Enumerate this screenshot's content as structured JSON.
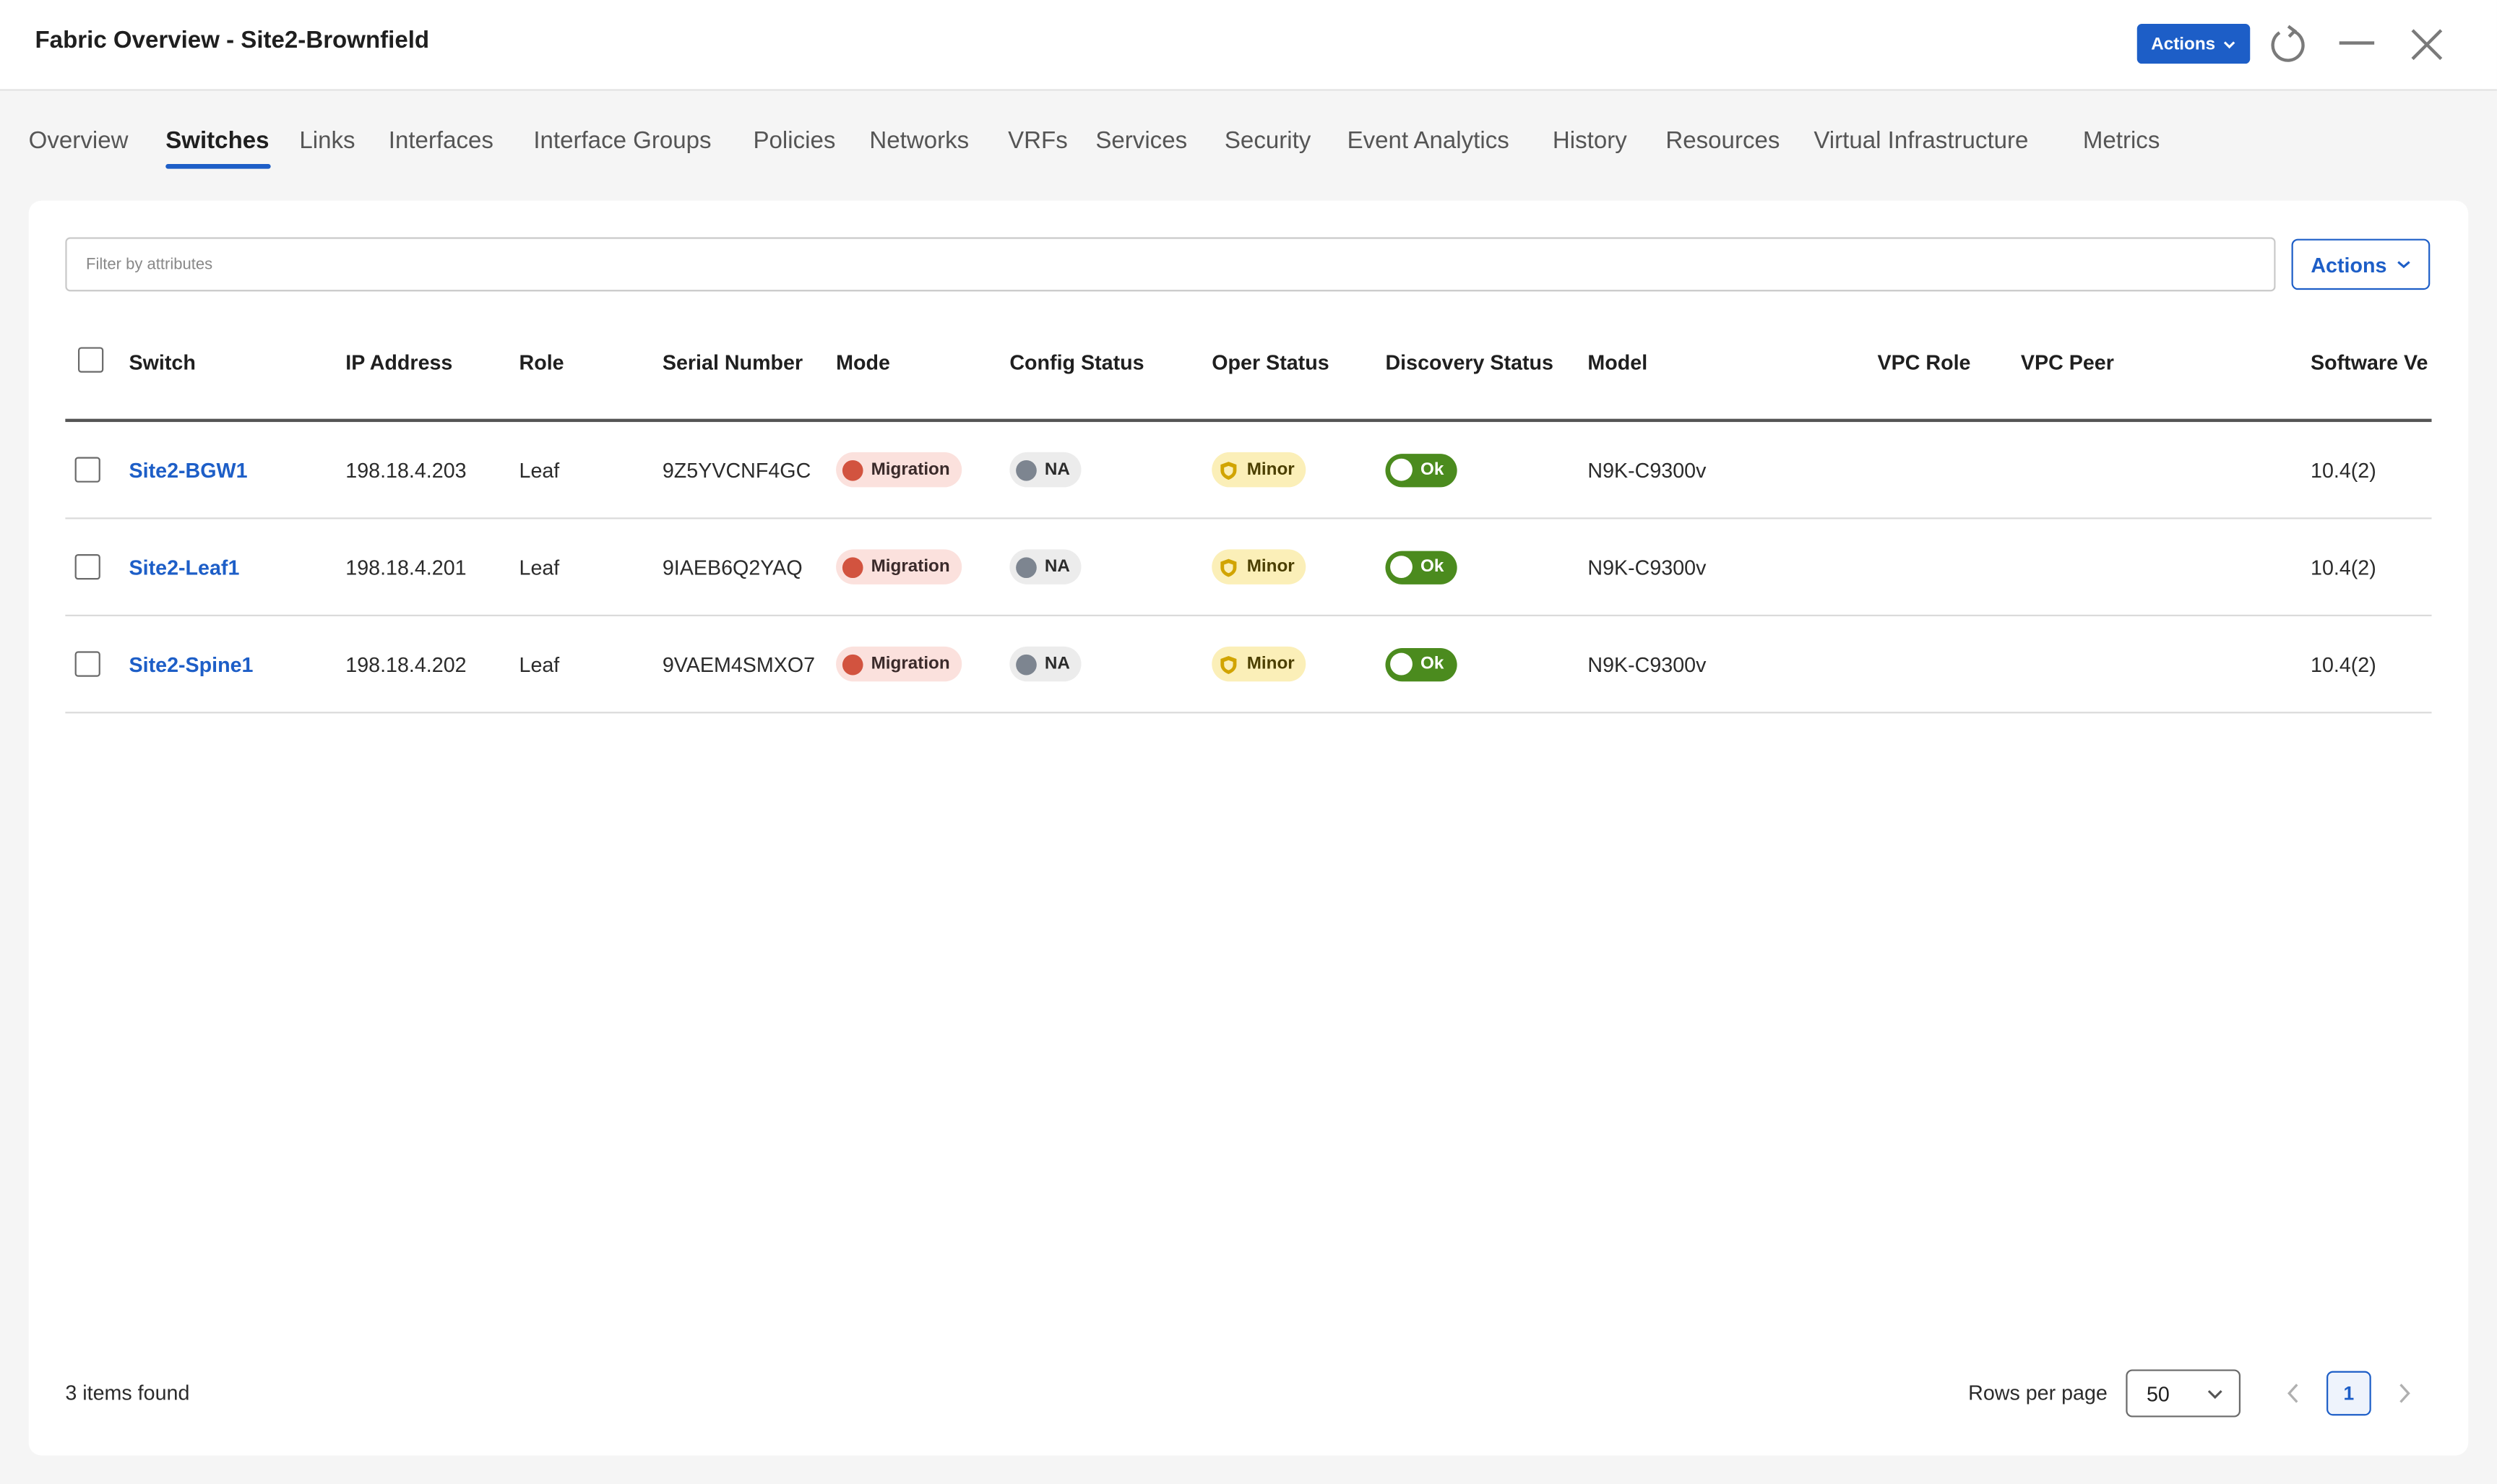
{
  "window": {
    "title": "Fabric Overview - Site2-Brownfield",
    "actions_label": "Actions"
  },
  "tabs": [
    {
      "label": "Overview"
    },
    {
      "label": "Switches",
      "active": true
    },
    {
      "label": "Links"
    },
    {
      "label": "Interfaces"
    },
    {
      "label": "Interface Groups"
    },
    {
      "label": "Policies"
    },
    {
      "label": "Networks"
    },
    {
      "label": "VRFs"
    },
    {
      "label": "Services"
    },
    {
      "label": "Security"
    },
    {
      "label": "Event Analytics"
    },
    {
      "label": "History"
    },
    {
      "label": "Resources"
    },
    {
      "label": "Virtual Infrastructure"
    },
    {
      "label": "Metrics"
    }
  ],
  "toolbar": {
    "filter_placeholder": "Filter by attributes",
    "filter_value": "",
    "actions_label": "Actions"
  },
  "table": {
    "columns": [
      "Switch",
      "IP Address",
      "Role",
      "Serial Number",
      "Mode",
      "Config Status",
      "Oper Status",
      "Discovery Status",
      "Model",
      "VPC Role",
      "VPC Peer",
      "Software Ve"
    ],
    "rows": [
      {
        "switch": "Site2-BGW1",
        "ip": "198.18.4.203",
        "role": "Leaf",
        "serial": "9Z5YVCNF4GC",
        "mode": "Migration",
        "config_status": "NA",
        "oper_status": "Minor",
        "discovery_status": "Ok",
        "model": "N9K-C9300v",
        "vpc_role": "",
        "vpc_peer": "",
        "software": "10.4(2)"
      },
      {
        "switch": "Site2-Leaf1",
        "ip": "198.18.4.201",
        "role": "Leaf",
        "serial": "9IAEB6Q2YAQ",
        "mode": "Migration",
        "config_status": "NA",
        "oper_status": "Minor",
        "discovery_status": "Ok",
        "model": "N9K-C9300v",
        "vpc_role": "",
        "vpc_peer": "",
        "software": "10.4(2)"
      },
      {
        "switch": "Site2-Spine1",
        "ip": "198.18.4.202",
        "role": "Leaf",
        "serial": "9VAEM4SMXO7",
        "mode": "Migration",
        "config_status": "NA",
        "oper_status": "Minor",
        "discovery_status": "Ok",
        "model": "N9K-C9300v",
        "vpc_role": "",
        "vpc_peer": "",
        "software": "10.4(2)"
      }
    ]
  },
  "footer": {
    "items_found": "3 items found",
    "rows_per_page_label": "Rows per page",
    "rows_per_page_value": "50",
    "current_page": "1"
  },
  "colors": {
    "accent": "#1d5ec7",
    "migration": "#d2533f",
    "ok": "#4b8b1e",
    "minor": "#fbefb8"
  },
  "icons": {
    "refresh": "refresh-icon",
    "minimize": "minimize-icon",
    "close": "close-icon",
    "dropdown": "chevron-down-icon",
    "prev": "chevron-left-icon",
    "next": "chevron-right-icon",
    "shield": "shield-icon"
  }
}
